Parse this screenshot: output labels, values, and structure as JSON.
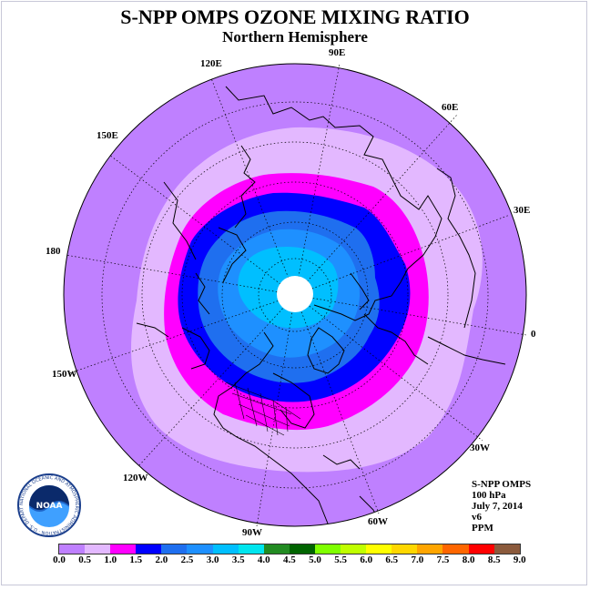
{
  "title": "S-NPP OMPS OZONE MIXING RATIO",
  "subtitle": "Northern Hemisphere",
  "longitude_labels": [
    {
      "text": "90E",
      "lon": 90
    },
    {
      "text": "60E",
      "lon": 60
    },
    {
      "text": "30E",
      "lon": 30
    },
    {
      "text": "0",
      "lon": 0
    },
    {
      "text": "30W",
      "lon": -30
    },
    {
      "text": "60W",
      "lon": -60
    },
    {
      "text": "90W",
      "lon": -90
    },
    {
      "text": "120W",
      "lon": -120
    },
    {
      "text": "150W",
      "lon": -150
    },
    {
      "text": "180",
      "lon": 180
    },
    {
      "text": "150E",
      "lon": 150
    },
    {
      "text": "120E",
      "lon": 120
    }
  ],
  "info": {
    "instrument": "S-NPP OMPS",
    "level": "100 hPa",
    "date": "July 7, 2014",
    "version": "v6",
    "units": "PPM"
  },
  "logo": {
    "text": "NOAA",
    "ring_text": "NATIONAL OCEANIC AND ATMOSPHERIC ADMINISTRATION · U.S. DEPARTMENT OF COMMERCE"
  },
  "colorbar": {
    "colors": [
      "#bf80ff",
      "#e3b8ff",
      "#ff00ff",
      "#0000ff",
      "#1f6fef",
      "#1e90ff",
      "#00bfff",
      "#00e5ee",
      "#228b22",
      "#006400",
      "#7fff00",
      "#c0ff00",
      "#ffff00",
      "#ffd700",
      "#ffa500",
      "#ff6600",
      "#ff0000",
      "#8b5a3c"
    ],
    "ticks": [
      "0.0",
      "0.5",
      "1.0",
      "1.5",
      "2.0",
      "2.5",
      "3.0",
      "3.5",
      "4.0",
      "4.5",
      "5.0",
      "5.5",
      "6.0",
      "6.5",
      "7.0",
      "7.5",
      "8.0",
      "8.5",
      "9.0"
    ]
  },
  "colors": {
    "outer_band": "#bf80ff",
    "light_band": "#e3b8ff",
    "magenta_band": "#ff00ff",
    "blue_band": "#0000ff",
    "mid_blue": "#1e90ff",
    "sky_blue": "#00bfff"
  }
}
